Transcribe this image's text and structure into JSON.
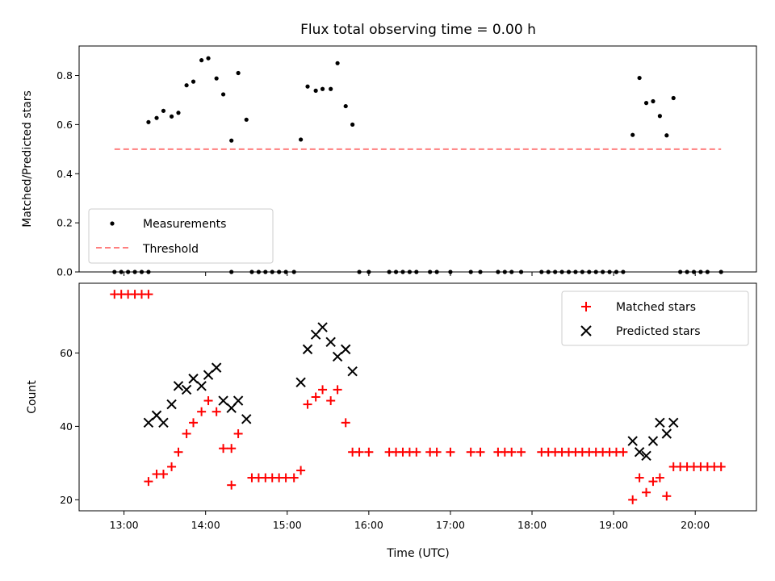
{
  "chart_data": [
    {
      "type": "scatter",
      "title": "Flux total observing time = 0.00 h",
      "xlabel": "",
      "ylabel": "Matched/Predicted stars",
      "xlim": [
        "12:27",
        "20:45"
      ],
      "ylim": [
        0.0,
        0.92
      ],
      "yticks": [
        0.0,
        0.2,
        0.4,
        0.6,
        0.8
      ],
      "ytick_labels": [
        "0.0",
        "0.2",
        "0.4",
        "0.6",
        "0.8"
      ],
      "xticks": [
        "13:00",
        "14:00",
        "15:00",
        "16:00",
        "17:00",
        "18:00",
        "19:00",
        "20:00"
      ],
      "legend_position": "lower-left",
      "series": [
        {
          "name": "Measurements",
          "marker": "dot",
          "color": "#000000",
          "points": [
            [
              "12:53",
              0.0
            ],
            [
              "12:58",
              0.0
            ],
            [
              "13:03",
              0.0
            ],
            [
              "13:08",
              0.0
            ],
            [
              "13:13",
              0.0
            ],
            [
              "13:18",
              0.0
            ],
            [
              "13:18",
              0.61
            ],
            [
              "13:24",
              0.627
            ],
            [
              "13:29",
              0.656
            ],
            [
              "13:35",
              0.633
            ],
            [
              "13:40",
              0.648
            ],
            [
              "13:46",
              0.76
            ],
            [
              "13:51",
              0.775
            ],
            [
              "13:57",
              0.862
            ],
            [
              "14:02",
              0.87
            ],
            [
              "14:08",
              0.788
            ],
            [
              "14:13",
              0.723
            ],
            [
              "14:19",
              0.0
            ],
            [
              "14:19",
              0.535
            ],
            [
              "14:24",
              0.81
            ],
            [
              "14:30",
              0.62
            ],
            [
              "14:34",
              0.0
            ],
            [
              "14:39",
              0.0
            ],
            [
              "14:44",
              0.0
            ],
            [
              "14:49",
              0.0
            ],
            [
              "14:54",
              0.0
            ],
            [
              "14:59",
              0.0
            ],
            [
              "15:05",
              0.0
            ],
            [
              "15:10",
              0.539
            ],
            [
              "15:15",
              0.755
            ],
            [
              "15:21",
              0.738
            ],
            [
              "15:26",
              0.745
            ],
            [
              "15:32",
              0.745
            ],
            [
              "15:37",
              0.85
            ],
            [
              "15:43",
              0.675
            ],
            [
              "15:48",
              0.6
            ],
            [
              "15:53",
              0.0
            ],
            [
              "16:00",
              0.0
            ],
            [
              "16:15",
              0.0
            ],
            [
              "16:20",
              0.0
            ],
            [
              "16:25",
              0.0
            ],
            [
              "16:30",
              0.0
            ],
            [
              "16:35",
              0.0
            ],
            [
              "16:45",
              0.0
            ],
            [
              "16:50",
              0.0
            ],
            [
              "17:00",
              0.0
            ],
            [
              "17:15",
              0.0
            ],
            [
              "17:22",
              0.0
            ],
            [
              "17:35",
              0.0
            ],
            [
              "17:40",
              0.0
            ],
            [
              "17:45",
              0.0
            ],
            [
              "17:52",
              0.0
            ],
            [
              "18:07",
              0.0
            ],
            [
              "18:12",
              0.0
            ],
            [
              "18:17",
              0.0
            ],
            [
              "18:22",
              0.0
            ],
            [
              "18:27",
              0.0
            ],
            [
              "18:32",
              0.0
            ],
            [
              "18:37",
              0.0
            ],
            [
              "18:42",
              0.0
            ],
            [
              "18:47",
              0.0
            ],
            [
              "18:52",
              0.0
            ],
            [
              "18:57",
              0.0
            ],
            [
              "19:02",
              0.0
            ],
            [
              "19:07",
              0.0
            ],
            [
              "19:14",
              0.558
            ],
            [
              "19:19",
              0.79
            ],
            [
              "19:24",
              0.688
            ],
            [
              "19:29",
              0.695
            ],
            [
              "19:34",
              0.635
            ],
            [
              "19:39",
              0.556
            ],
            [
              "19:44",
              0.708
            ],
            [
              "19:49",
              0.0
            ],
            [
              "19:54",
              0.0
            ],
            [
              "19:59",
              0.0
            ],
            [
              "20:04",
              0.0
            ],
            [
              "20:09",
              0.0
            ],
            [
              "20:19",
              0.0
            ]
          ]
        },
        {
          "name": "Threshold",
          "marker": "dashed-line",
          "color": "#ff7f7f",
          "points": [
            [
              "12:53",
              0.5
            ],
            [
              "20:19",
              0.5
            ]
          ]
        }
      ]
    },
    {
      "type": "scatter",
      "title": "",
      "xlabel": "Time (UTC)",
      "ylabel": "Count",
      "xlim": [
        "12:27",
        "20:45"
      ],
      "ylim": [
        17,
        79
      ],
      "yticks": [
        20,
        40,
        60
      ],
      "ytick_labels": [
        "20",
        "40",
        "60"
      ],
      "xticks": [
        "13:00",
        "14:00",
        "15:00",
        "16:00",
        "17:00",
        "18:00",
        "19:00",
        "20:00"
      ],
      "xtick_labels": [
        "13:00",
        "14:00",
        "15:00",
        "16:00",
        "17:00",
        "18:00",
        "19:00",
        "20:00"
      ],
      "legend_position": "upper-right",
      "series": [
        {
          "name": "Matched stars",
          "marker": "plus",
          "color": "#ff0000",
          "points": [
            [
              "12:53",
              76
            ],
            [
              "12:58",
              76
            ],
            [
              "13:03",
              76
            ],
            [
              "13:08",
              76
            ],
            [
              "13:13",
              76
            ],
            [
              "13:18",
              76
            ],
            [
              "13:18",
              25
            ],
            [
              "13:24",
              27
            ],
            [
              "13:29",
              27
            ],
            [
              "13:35",
              29
            ],
            [
              "13:40",
              33
            ],
            [
              "13:46",
              38
            ],
            [
              "13:51",
              41
            ],
            [
              "13:57",
              44
            ],
            [
              "14:02",
              47
            ],
            [
              "14:08",
              44
            ],
            [
              "14:13",
              34
            ],
            [
              "14:19",
              34
            ],
            [
              "14:19",
              24
            ],
            [
              "14:24",
              38
            ],
            [
              "14:34",
              26
            ],
            [
              "14:39",
              26
            ],
            [
              "14:44",
              26
            ],
            [
              "14:49",
              26
            ],
            [
              "14:54",
              26
            ],
            [
              "14:59",
              26
            ],
            [
              "15:05",
              26
            ],
            [
              "15:10",
              28
            ],
            [
              "15:15",
              46
            ],
            [
              "15:21",
              48
            ],
            [
              "15:26",
              50
            ],
            [
              "15:32",
              47
            ],
            [
              "15:37",
              50
            ],
            [
              "15:43",
              41
            ],
            [
              "15:48",
              33
            ],
            [
              "15:53",
              33
            ],
            [
              "16:00",
              33
            ],
            [
              "16:15",
              33
            ],
            [
              "16:20",
              33
            ],
            [
              "16:25",
              33
            ],
            [
              "16:30",
              33
            ],
            [
              "16:35",
              33
            ],
            [
              "16:45",
              33
            ],
            [
              "16:50",
              33
            ],
            [
              "17:00",
              33
            ],
            [
              "17:15",
              33
            ],
            [
              "17:22",
              33
            ],
            [
              "17:35",
              33
            ],
            [
              "17:40",
              33
            ],
            [
              "17:45",
              33
            ],
            [
              "17:52",
              33
            ],
            [
              "18:07",
              33
            ],
            [
              "18:12",
              33
            ],
            [
              "18:17",
              33
            ],
            [
              "18:22",
              33
            ],
            [
              "18:27",
              33
            ],
            [
              "18:32",
              33
            ],
            [
              "18:37",
              33
            ],
            [
              "18:42",
              33
            ],
            [
              "18:47",
              33
            ],
            [
              "18:52",
              33
            ],
            [
              "18:57",
              33
            ],
            [
              "19:02",
              33
            ],
            [
              "19:07",
              33
            ],
            [
              "19:14",
              20
            ],
            [
              "19:19",
              26
            ],
            [
              "19:24",
              22
            ],
            [
              "19:29",
              25
            ],
            [
              "19:34",
              26
            ],
            [
              "19:39",
              21
            ],
            [
              "19:44",
              29
            ],
            [
              "19:49",
              29
            ],
            [
              "19:54",
              29
            ],
            [
              "19:59",
              29
            ],
            [
              "20:04",
              29
            ],
            [
              "20:09",
              29
            ],
            [
              "20:14",
              29
            ],
            [
              "20:19",
              29
            ]
          ]
        },
        {
          "name": "Predicted stars",
          "marker": "x",
          "color": "#000000",
          "points": [
            [
              "13:18",
              41
            ],
            [
              "13:24",
              43
            ],
            [
              "13:29",
              41
            ],
            [
              "13:35",
              46
            ],
            [
              "13:40",
              51
            ],
            [
              "13:46",
              50
            ],
            [
              "13:51",
              53
            ],
            [
              "13:57",
              51
            ],
            [
              "14:02",
              54
            ],
            [
              "14:08",
              56
            ],
            [
              "14:13",
              47
            ],
            [
              "14:19",
              45
            ],
            [
              "14:24",
              47
            ],
            [
              "14:30",
              42
            ],
            [
              "15:10",
              52
            ],
            [
              "15:15",
              61
            ],
            [
              "15:21",
              65
            ],
            [
              "15:26",
              67
            ],
            [
              "15:32",
              63
            ],
            [
              "15:37",
              59
            ],
            [
              "15:43",
              61
            ],
            [
              "15:48",
              55
            ],
            [
              "19:14",
              36
            ],
            [
              "19:19",
              33
            ],
            [
              "19:24",
              32
            ],
            [
              "19:29",
              36
            ],
            [
              "19:34",
              41
            ],
            [
              "19:39",
              38
            ],
            [
              "19:44",
              41
            ]
          ]
        }
      ]
    }
  ]
}
